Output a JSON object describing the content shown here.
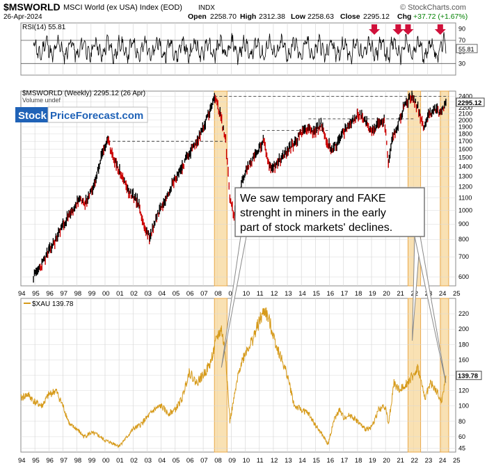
{
  "header": {
    "symbol": "$MSWORLD",
    "name": "MSCI World (ex USA) Index (EOD)",
    "exchange": "INDX",
    "date": "26-Apr-2024",
    "open_label": "Open",
    "open": "2258.70",
    "high_label": "High",
    "high": "2312.38",
    "low_label": "Low",
    "low": "2258.63",
    "close_label": "Close",
    "close": "2295.12",
    "chg_label": "Chg",
    "chg": "+37.72 (+1.67%)",
    "brand": "© StockCharts.com"
  },
  "logo": {
    "part1": "Stock",
    "part2": "PriceForecast.com"
  },
  "annotation": {
    "line1": "We saw temporary and FAKE",
    "line2": "strenght in miners in the early",
    "line3": "part of stock markets' declines."
  },
  "x_tick_labels": [
    "94",
    "95",
    "96",
    "97",
    "98",
    "99",
    "00",
    "01",
    "02",
    "03",
    "04",
    "05",
    "06",
    "07",
    "08",
    "09",
    "10",
    "11",
    "12",
    "13",
    "14",
    "15",
    "16",
    "17",
    "18",
    "19",
    "20",
    "21",
    "22",
    "23",
    "24",
    "25"
  ],
  "chart_data": [
    {
      "type": "line",
      "title": "RSI(14) 55.81",
      "series": [
        {
          "name": "RSI(14)",
          "last": 55.81
        }
      ],
      "y_ticks": [
        30,
        50,
        70,
        90
      ],
      "ylim": [
        10,
        100
      ],
      "reference_lines": [
        30,
        70
      ],
      "last_value_label": "55.81",
      "signals": [
        "down-arrow",
        "down-arrow",
        "down-arrow",
        "down-arrow"
      ],
      "signal_years": [
        2019.2,
        2020.9,
        2021.6,
        2023.9
      ]
    },
    {
      "type": "line",
      "title": "$MSWORLD (Weekly) 2295.12 (26 Apr)",
      "subtitle": "Volume undef",
      "scale": "log",
      "ylim": [
        560,
        2500
      ],
      "y_ticks": [
        600,
        700,
        800,
        900,
        1000,
        1100,
        1200,
        1300,
        1400,
        1500,
        1600,
        1700,
        1800,
        1900,
        2000,
        2100,
        2200,
        2300,
        2400
      ],
      "last_value_label": "2295.12",
      "x_range": [
        1994,
        2025
      ],
      "series": [
        {
          "name": "$MSWORLD",
          "x": [
            1994.9,
            1995.5,
            1996.0,
            1996.5,
            1997.0,
            1997.6,
            1998.1,
            1998.7,
            1999.3,
            1999.9,
            2000.2,
            2000.8,
            2001.2,
            2001.7,
            2002.3,
            2002.8,
            2003.2,
            2003.7,
            2004.3,
            2004.9,
            2005.5,
            2006.1,
            2006.6,
            2007.1,
            2007.5,
            2007.8,
            2008.2,
            2008.6,
            2008.9,
            2009.2,
            2009.6,
            2010.0,
            2010.4,
            2010.8,
            2011.3,
            2011.7,
            2012.0,
            2012.5,
            2013.0,
            2013.6,
            2014.1,
            2014.5,
            2014.9,
            2015.4,
            2015.8,
            2016.1,
            2016.6,
            2017.0,
            2017.5,
            2018.0,
            2018.6,
            2018.9,
            2019.3,
            2019.9,
            2020.2,
            2020.5,
            2020.9,
            2021.3,
            2021.7,
            2021.9,
            2022.3,
            2022.7,
            2023.0,
            2023.5,
            2023.9,
            2024.3
          ],
          "values": [
            600,
            660,
            730,
            800,
            900,
            980,
            1080,
            1060,
            1250,
            1600,
            1700,
            1420,
            1300,
            1150,
            1080,
            880,
            810,
            960,
            1100,
            1250,
            1400,
            1580,
            1700,
            1950,
            2150,
            2380,
            2100,
            1700,
            1100,
            950,
            1150,
            1350,
            1450,
            1550,
            1700,
            1420,
            1400,
            1480,
            1580,
            1700,
            1850,
            1900,
            1800,
            1950,
            1700,
            1600,
            1680,
            1820,
            1950,
            2100,
            2000,
            1850,
            1900,
            2000,
            1450,
            1750,
            1950,
            2200,
            2380,
            2390,
            2200,
            1900,
            2050,
            2200,
            2100,
            2295.12
          ]
        }
      ],
      "reference_levels": [
        1700,
        1850,
        2020,
        2400
      ],
      "highlight_periods": [
        [
          2007.8,
          2008.7
        ],
        [
          2021.6,
          2022.5
        ],
        [
          2023.9,
          2024.5
        ]
      ]
    },
    {
      "type": "line",
      "title": "$XAU 139.78",
      "ylim": [
        40,
        240
      ],
      "y_ticks": [
        45,
        60,
        80,
        100,
        120,
        140,
        160,
        180,
        200,
        220
      ],
      "last_value_label": "139.78",
      "x_range": [
        1994,
        2025
      ],
      "series": [
        {
          "name": "$XAU",
          "x": [
            1994.0,
            1994.5,
            1995.0,
            1995.5,
            1996.0,
            1996.5,
            1997.0,
            1997.5,
            1998.0,
            1998.5,
            1999.0,
            1999.5,
            2000.0,
            2000.5,
            2001.0,
            2001.5,
            2002.0,
            2002.5,
            2003.0,
            2003.5,
            2004.0,
            2004.5,
            2005.0,
            2005.5,
            2006.0,
            2006.5,
            2007.0,
            2007.5,
            2008.0,
            2008.3,
            2008.6,
            2008.9,
            2009.2,
            2009.6,
            2010.0,
            2010.5,
            2011.0,
            2011.4,
            2011.8,
            2012.2,
            2012.6,
            2013.0,
            2013.5,
            2014.0,
            2014.5,
            2015.0,
            2015.5,
            2015.9,
            2016.3,
            2016.7,
            2017.0,
            2017.5,
            2018.0,
            2018.5,
            2019.0,
            2019.5,
            2020.0,
            2020.2,
            2020.6,
            2021.0,
            2021.5,
            2022.0,
            2022.3,
            2022.8,
            2023.2,
            2023.6,
            2024.0,
            2024.3
          ],
          "values": [
            110,
            115,
            105,
            100,
            115,
            120,
            100,
            75,
            70,
            60,
            65,
            62,
            55,
            52,
            48,
            58,
            70,
            75,
            85,
            95,
            100,
            90,
            95,
            110,
            145,
            130,
            140,
            155,
            190,
            200,
            165,
            80,
            110,
            150,
            170,
            185,
            210,
            225,
            205,
            180,
            160,
            140,
            100,
            95,
            90,
            75,
            62,
            50,
            80,
            95,
            85,
            88,
            80,
            70,
            72,
            95,
            100,
            75,
            130,
            120,
            130,
            140,
            150,
            110,
            130,
            120,
            105,
            139.78
          ]
        }
      ],
      "highlight_periods": [
        [
          2007.8,
          2008.7
        ],
        [
          2021.6,
          2022.5
        ],
        [
          2023.9,
          2024.5
        ]
      ]
    }
  ],
  "colors": {
    "rsi_line": "#000000",
    "price_up": "#000000",
    "price_down": "#cc0000",
    "xau_line": "#d69a1a",
    "highlight_fill": "#f7d79a",
    "highlight_stroke": "#e8a84a",
    "signal_arrow": "#d0103a",
    "logo_bg": "#1f62b7",
    "grid": "#d8d8d8",
    "chg_positive": "#008000"
  }
}
